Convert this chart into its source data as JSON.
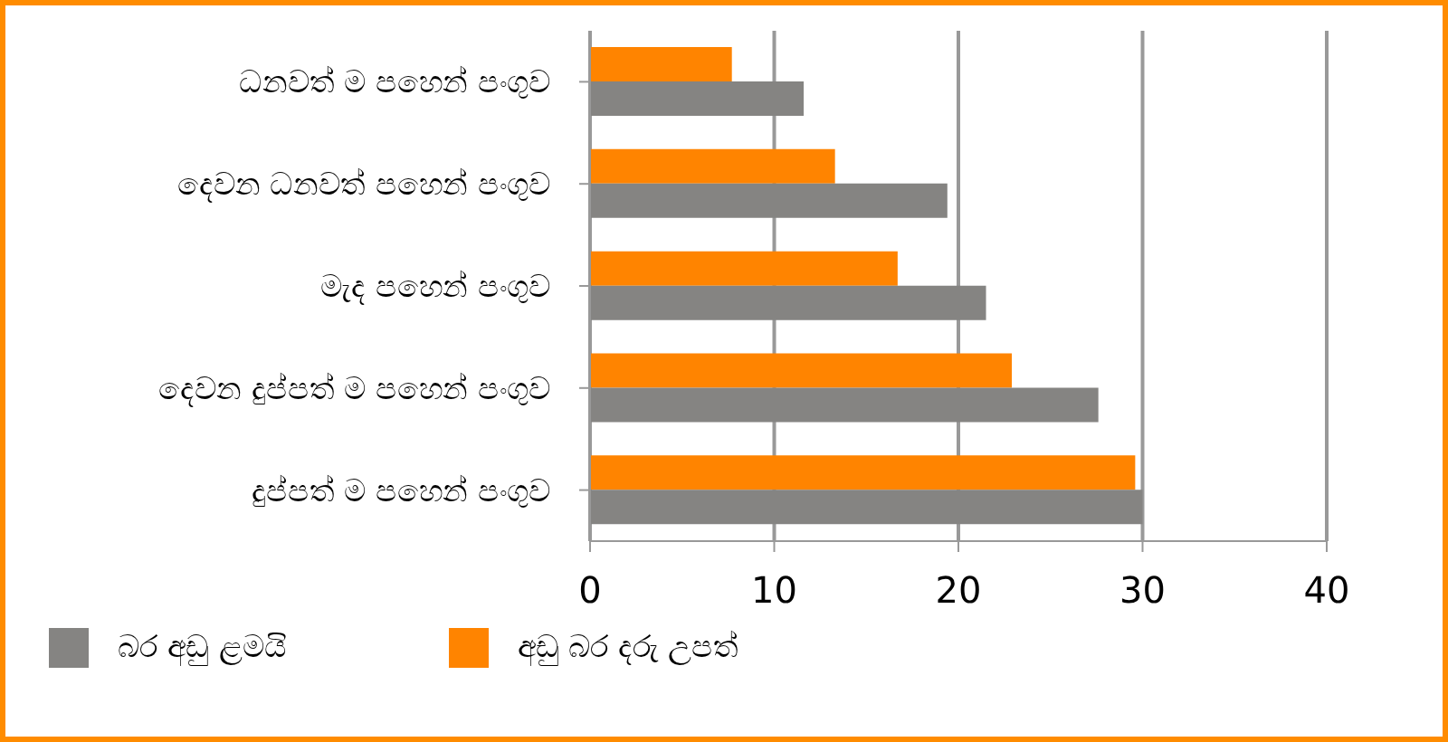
{
  "chart_data": {
    "type": "bar",
    "orientation": "horizontal",
    "categories": [
      "ධනවත් ම පහෙන් පංගුව",
      "දෙවන ධනවත් පහෙන් පංගුව",
      "මැද  පහෙන් පංගුව",
      "දෙවන දුප්පත් ම පහෙන් පංගුව",
      "දුප්පත් ම පහෙන් පංගුව"
    ],
    "series": [
      {
        "name": "බර අඩු ළමයි",
        "color": "#858482",
        "values": [
          11.6,
          19.4,
          21.5,
          27.6,
          30.0
        ]
      },
      {
        "name": "අඩු බර දරු උපත්",
        "color": "#ff8400",
        "values": [
          7.7,
          13.3,
          16.7,
          22.9,
          29.6
        ]
      }
    ],
    "xlim": [
      0,
      40
    ],
    "xticks": [
      0,
      10,
      20,
      30,
      40
    ],
    "grid": "x",
    "legend": "bottom left"
  }
}
